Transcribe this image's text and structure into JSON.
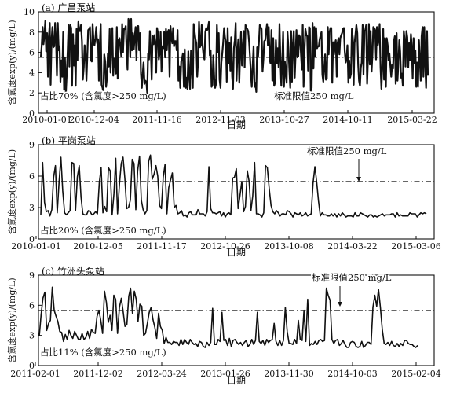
{
  "chart_data": [
    {
      "type": "line",
      "title": "(a) 广昌泵站",
      "xlabel": "日期",
      "ylabel": "含氯度exp(y)/(mg/L)",
      "ylim": [
        0,
        10
      ],
      "yticks": [
        "0",
        "2",
        "4",
        "6",
        "8",
        "10"
      ],
      "xtick_labels": [
        "2010-01-01",
        "2010-12-04",
        "2011-11-16",
        "2012-11-03",
        "2013-10-27",
        "2014-10-11",
        "2015-03-22"
      ],
      "threshold": {
        "value": 5.5,
        "label": "标准限值250 mg/L"
      },
      "share_note": "占比70% (含氯度>250 mg/L)",
      "series": [
        {
          "color": "#111111",
          "values": [
            5.5,
            6.6,
            8.5,
            6.8,
            7.7,
            9.1,
            6.1,
            7.9,
            3.6,
            7.4,
            8.9,
            2.8,
            7.3,
            8.5,
            6.5,
            6.6,
            8.9,
            7.1,
            3.7,
            8.9,
            6.2,
            6.6,
            3.1,
            5.2,
            3.6,
            8.0,
            2.3,
            5.5,
            2.0,
            3.8,
            6.1,
            8.7,
            4.6,
            8.7,
            8.4,
            2.7,
            7.8,
            4.7,
            6.7,
            2.7,
            8.3,
            5.2,
            9.0,
            8.1,
            8.1,
            8.7,
            7.1,
            3.3,
            4.5,
            6.7,
            6.2,
            3.2,
            5.6,
            8.2,
            8.3,
            8.5,
            5.2,
            5.1,
            8.8,
            7.1,
            6.7,
            7.4,
            8.5,
            6.9,
            7.3,
            3.2,
            6.8,
            8.8,
            2.8,
            2.5,
            2.0,
            5.8,
            5.1,
            2.6,
            3.5,
            5.9,
            4.6,
            8.3,
            4.0,
            6.7,
            8.4,
            3.7,
            5.4,
            5.1,
            3.9,
            8.5,
            3.4,
            7.2,
            7.4,
            6.5,
            5.6,
            8.8,
            6.0,
            8.3,
            8.3,
            8.6,
            6.2,
            4.3,
            9.3,
            8.9,
            5.5,
            9.3,
            6.2,
            7.9,
            6.3,
            7.4,
            8.5,
            5.2,
            8.6,
            8.6,
            6.2,
            7.9,
            3.9,
            2.5,
            3.9,
            5.0,
            2.9,
            3.2,
            3.1,
            2.0,
            5.9,
            5.3,
            8.1,
            6.5,
            3.3,
            7.6,
            6.8,
            7.7,
            6.9,
            4.0,
            8.4,
            7.9,
            5.3,
            6.0,
            8.0,
            4.1,
            6.6,
            6.4,
            8.0,
            5.5,
            8.3,
            6.2,
            8.0,
            8.2,
            3.6,
            8.6,
            7.6,
            6.9,
            8.4,
            6.6,
            7.1,
            7.1,
            6.2,
            8.2,
            3.2,
            4.6,
            2.5,
            5.1,
            5.4,
            5.9,
            2.6,
            6.3,
            2.5,
            3.5,
            2.4,
            6.1,
            3.5,
            2.4,
            6.2,
            4.4,
            2.5,
            8.8,
            8.1,
            7.3,
            6.9,
            3.6,
            5.2,
            9.0,
            6.5,
            6.7,
            8.7,
            6.6,
            5.7,
            5.3,
            8.0,
            8.4,
            8.2,
            8.4,
            9.0,
            5.7,
            6.2,
            2.6,
            2.8,
            5.7,
            3.4,
            2.5,
            2.9,
            8.7,
            6.0,
            7.9,
            3.3,
            2.5,
            5.0,
            5.9,
            7.0,
            8.4,
            7.5,
            7.0,
            3.1,
            8.4,
            4.9,
            6.9,
            4.2,
            7.5,
            3.6,
            2.4,
            6.4,
            7.2,
            8.9,
            3.2,
            6.1,
            7.3,
            3.0,
            5.9,
            8.0,
            4.7,
            6.3,
            8.1,
            4.5,
            8.7,
            8.4,
            8.3,
            8.1,
            7.0,
            5.6,
            3.8,
            2.6,
            4.6,
            6.6,
            2.6,
            3.0,
            2.1,
            6.5,
            5.6,
            7.0,
            8.7,
            8.5,
            8.3,
            4.1,
            5.3,
            7.1,
            7.2,
            8.1,
            8.8,
            6.7,
            8.5,
            5.3,
            4.9,
            8.2,
            3.2,
            7.4,
            2.7,
            3.0,
            7.2,
            4.9,
            6.4,
            4.5,
            8.8,
            5.5,
            2.7,
            4.9,
            8.0,
            2.6,
            5.1,
            3.9,
            3.0,
            8.0,
            6.4,
            4.4,
            2.5,
            8.1,
            3.1,
            6.7,
            8.1,
            3.5,
            5.8,
            8.2,
            5.5,
            5.6,
            7.7,
            7.5,
            5.9,
            4.3,
            8.7,
            2.6,
            6.3,
            8.3,
            7.7,
            7.6,
            4.2,
            8.5,
            8.4,
            2.2,
            2.5,
            8.9,
            4.4,
            8.5,
            5.6,
            8.4,
            6.4,
            6.6,
            6.6,
            7.3,
            7.7,
            8.0,
            3.8,
            3.1,
            4.4,
            5.8,
            3.3,
            3.4,
            8.5,
            5.8,
            8.0,
            8.4,
            8.4,
            3.0,
            7.0,
            5.8,
            6.8,
            7.2,
            3.6,
            6.9,
            7.4,
            5.8,
            7.4,
            7.7,
            7.9,
            8.3,
            8.4,
            6.1,
            5.0,
            5.3,
            6.7,
            3.0,
            5.2,
            3.5,
            3.9,
            8.3,
            7.4,
            2.8,
            6.9,
            7.8,
            8.7,
            7.9,
            4.8,
            3.2,
            2.7,
            4.5,
            5.0,
            8.7,
            3.8,
            8.1,
            8.2,
            8.7,
            2.9,
            5.4,
            8.8,
            4.8,
            8.1,
            4.1,
            5.8,
            8.5,
            8.4,
            8.2,
            5.3,
            8.5,
            6.7,
            7.2,
            8.8,
            4.5,
            2.4,
            4.6,
            8.3,
            3.3,
            7.4,
            2.6,
            7.4,
            6.7,
            5.2,
            5.9,
            4.7,
            3.6,
            4.8,
            4.4,
            7.1,
            7.6,
            2.9,
            7.9,
            3.2,
            4.8,
            7.2,
            6.1,
            3.5,
            3.9,
            2.7,
            8.1,
            7.2,
            4.6,
            8.1,
            7.5,
            4.5,
            6.9,
            5.2,
            7.8,
            6.5,
            3.4,
            7.4,
            4.9,
            6.2,
            2.6,
            5.0,
            2.6,
            7.2,
            5.1,
            3.2,
            7.6,
            8.5,
            3.6,
            8.5,
            4.9,
            2.5,
            8.1,
            3.7
          ]
        }
      ]
    },
    {
      "type": "line",
      "title": "(b) 平岗泵站",
      "xlabel": "日期",
      "ylabel": "含氯度exp(y)/(mg/L)",
      "ylim": [
        0,
        9
      ],
      "yticks": [
        "0",
        "3",
        "6",
        "9"
      ],
      "xtick_labels": [
        "2010-01-01",
        "2010-12-05",
        "2011-11-17",
        "2012-10-26",
        "2013-10-08",
        "2014-03-22",
        "2015-03-06"
      ],
      "threshold": {
        "value": 5.5,
        "label": "标准限值250 mg/L"
      },
      "share_note": "占比20% (含氯度>250 mg/L)",
      "series": [
        {
          "color": "#111111",
          "values": [
            2.3,
            7.3,
            3.5,
            2.6,
            2.7,
            2.2,
            2.8,
            5.9,
            7.0,
            2.5,
            5.5,
            7.8,
            4.6,
            2.5,
            2.3,
            2.5,
            2.7,
            7.3,
            7.2,
            2.7,
            5.9,
            7.0,
            4.0,
            2.4,
            2.3,
            2.3,
            2.7,
            2.6,
            2.3,
            2.4,
            2.6,
            2.4,
            5.4,
            6.8,
            2.5,
            3.1,
            2.6,
            6.8,
            6.5,
            2.3,
            4.3,
            7.7,
            2.4,
            5.2,
            7.2,
            7.8,
            5.8,
            2.9,
            3.0,
            3.7,
            7.6,
            7.2,
            2.8,
            6.5,
            7.9,
            3.7,
            2.8,
            2.4,
            2.7,
            7.4,
            8.0,
            5.7,
            6.2,
            7.0,
            6.0,
            3.2,
            2.9,
            5.9,
            7.1,
            2.4,
            4.9,
            5.6,
            6.3,
            3.0,
            3.2,
            2.4,
            2.5,
            2.7,
            2.2,
            2.3,
            2.1,
            2.5,
            2.6,
            2.3,
            2.3,
            2.3,
            2.8,
            2.4,
            2.4,
            2.4,
            2.2,
            2.6,
            6.9,
            2.9,
            2.5,
            2.5,
            2.4,
            2.5,
            2.6,
            2.2,
            2.5,
            2.1,
            2.4,
            2.5,
            2.3,
            5.8,
            5.9,
            6.7,
            2.9,
            4.1,
            5.5,
            2.6,
            3.1,
            6.5,
            5.5,
            2.7,
            4.1,
            7.3,
            2.4,
            2.4,
            2.3,
            2.1,
            2.5,
            7.0,
            6.8,
            4.8,
            3.2,
            2.6,
            2.4,
            2.7,
            2.5,
            2.2,
            2.4,
            2.4,
            2.3,
            2.7,
            2.6,
            2.4,
            2.1,
            2.5,
            2.4,
            2.3,
            2.5,
            2.2,
            2.3,
            2.5,
            2.2,
            2.3,
            2.4,
            5.3,
            6.9,
            5.4,
            3.6,
            2.2,
            2.5,
            2.3,
            2.3,
            2.2,
            2.2,
            2.4,
            2.2,
            2.4,
            2.1,
            2.4,
            2.2,
            2.5,
            2.3,
            2.1,
            2.2,
            2.2,
            2.2,
            2.1,
            2.5,
            2.2,
            2.2,
            2.5,
            2.4,
            2.3,
            2.2,
            2.1,
            2.3,
            2.3,
            2.1,
            2.2,
            2.1,
            2.2,
            2.3,
            2.4,
            2.2,
            2.3,
            2.3,
            2.3,
            2.4,
            2.4,
            2.1,
            2.5,
            2.2,
            2.3,
            2.2,
            2.2,
            2.2,
            2.2,
            2.5,
            2.4,
            2.4,
            2.4,
            2.1,
            2.3,
            2.5,
            2.4,
            2.5,
            2.4
          ]
        }
      ]
    },
    {
      "type": "line",
      "title": "(c) 竹洲头泵站",
      "xlabel": "日期",
      "ylabel": "含氯度exp(y)/(mg/L)",
      "ylim": [
        0,
        9
      ],
      "yticks": [
        "0",
        "3",
        "6",
        "9"
      ],
      "xtick_labels": [
        "2011-02-01",
        "2011-12-02",
        "2012-03-24",
        "2013-01-26",
        "2013-11-30",
        "2014-10-03",
        "2015-02-04"
      ],
      "threshold": {
        "value": 5.5,
        "label": "标准限值250 mg/L"
      },
      "share_note": "占比11% (含氯度>250 mg/L)",
      "series": [
        {
          "color": "#111111",
          "values": [
            2.9,
            5.1,
            6.7,
            7.3,
            3.5,
            4.2,
            4.5,
            7.8,
            5.5,
            4.9,
            4.4,
            3.4,
            3.3,
            2.4,
            3.1,
            2.6,
            3.5,
            3.0,
            2.7,
            3.4,
            3.0,
            2.6,
            2.6,
            3.2,
            2.6,
            2.8,
            3.4,
            2.7,
            3.6,
            3.3,
            3.2,
            4.9,
            5.5,
            4.5,
            3.2,
            7.4,
            6.3,
            4.3,
            5.0,
            3.5,
            7.0,
            6.6,
            3.2,
            5.8,
            6.7,
            5.4,
            3.9,
            4.1,
            6.9,
            7.7,
            5.2,
            7.4,
            6.6,
            4.4,
            6.1,
            5.9,
            3.0,
            3.2,
            4.2,
            5.3,
            5.8,
            4.6,
            3.8,
            2.7,
            5.2,
            3.9,
            3.5,
            2.2,
            2.8,
            2.3,
            2.3,
            2.1,
            2.4,
            2.3,
            2.3,
            2.0,
            2.6,
            2.1,
            2.6,
            2.3,
            2.1,
            2.6,
            2.3,
            2.1,
            2.2,
            1.9,
            2.4,
            2.3,
            1.9,
            1.8,
            2.3,
            2.0,
            2.3,
            5.7,
            2.1,
            2.1,
            2.6,
            2.4,
            5.3,
            2.5,
            2.6,
            2.0,
            2.7,
            1.9,
            2.5,
            2.6,
            2.3,
            2.1,
            2.3,
            2.0,
            2.3,
            2.5,
            1.9,
            2.1,
            2.6,
            2.1,
            2.5,
            5.3,
            2.4,
            2.2,
            2.5,
            2.0,
            2.6,
            2.3,
            2.5,
            2.6,
            4.2,
            2.4,
            2.0,
            2.5,
            2.0,
            2.5,
            5.8,
            3.4,
            2.2,
            2.2,
            2.1,
            2.6,
            2.2,
            4.5,
            2.6,
            2.5,
            5.5,
            2.4,
            6.6,
            2.0,
            2.2,
            2.1,
            2.4,
            2.1,
            2.5,
            2.6,
            2.4,
            2.5,
            7.7,
            7.0,
            6.5,
            2.6,
            2.2,
            2.5,
            2.6,
            2.0,
            2.2,
            2.5,
            2.1,
            1.8,
            1.8,
            2.3,
            2.4,
            2.3,
            1.9,
            1.8,
            1.9,
            2.4,
            1.8,
            2.0,
            2.3,
            2.3,
            2.1,
            5.8,
            7.0,
            5.9,
            7.6,
            5.8,
            3.6,
            2.2,
            2.1,
            2.3,
            2.0,
            2.4,
            2.0,
            1.9,
            2.2,
            1.9,
            2.2,
            2.0,
            2.5,
            2.5,
            2.2,
            2.1,
            2.1,
            1.9,
            1.8,
            2.0
          ]
        }
      ]
    }
  ]
}
